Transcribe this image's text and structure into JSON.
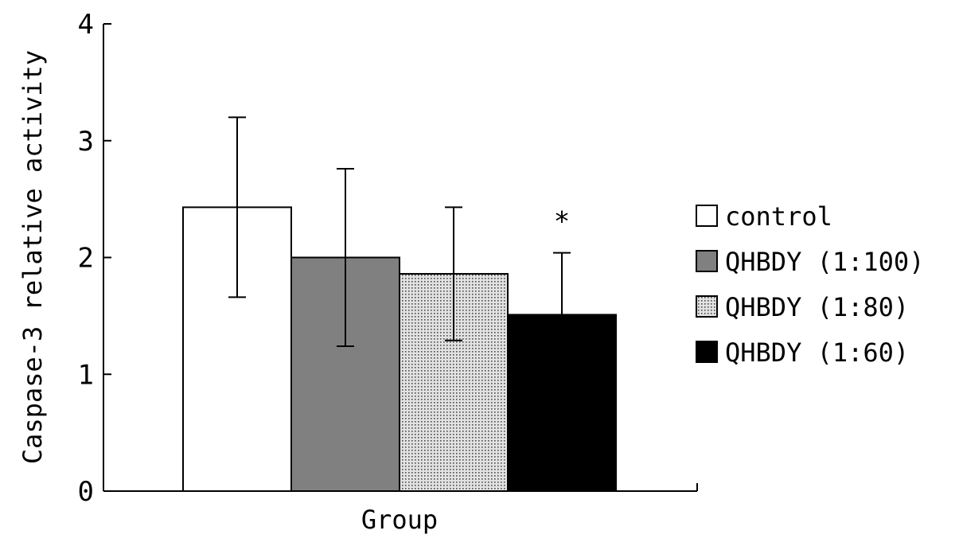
{
  "chart_data": {
    "type": "bar",
    "categories": [
      "control",
      "QHBDY (1:100)",
      "QHBDY (1:80)",
      "QHBDY (1:60)"
    ],
    "values": [
      2.43,
      2.0,
      1.86,
      1.51
    ],
    "error": [
      0.77,
      0.76,
      0.57,
      0.53
    ],
    "xlabel": "Group",
    "ylabel": "Caspase-3 relative activity",
    "ylim": [
      0,
      4
    ],
    "yticks": [
      0,
      1,
      2,
      3,
      4
    ],
    "grid": false,
    "legend_position": "right",
    "legend": [
      {
        "label": "control",
        "fill": "white"
      },
      {
        "label": "QHBDY (1:100)",
        "fill": "gray"
      },
      {
        "label": "QHBDY (1:80)",
        "fill": "dotted"
      },
      {
        "label": "QHBDY (1:60)",
        "fill": "black"
      }
    ],
    "annotations": [
      {
        "category": "QHBDY (1:60)",
        "text": "*"
      }
    ],
    "colors": {
      "white": "#ffffff",
      "gray": "#808080",
      "black": "#000000",
      "dot": "#4a4a4a",
      "dotted_bg": "#e2e2e2"
    }
  }
}
